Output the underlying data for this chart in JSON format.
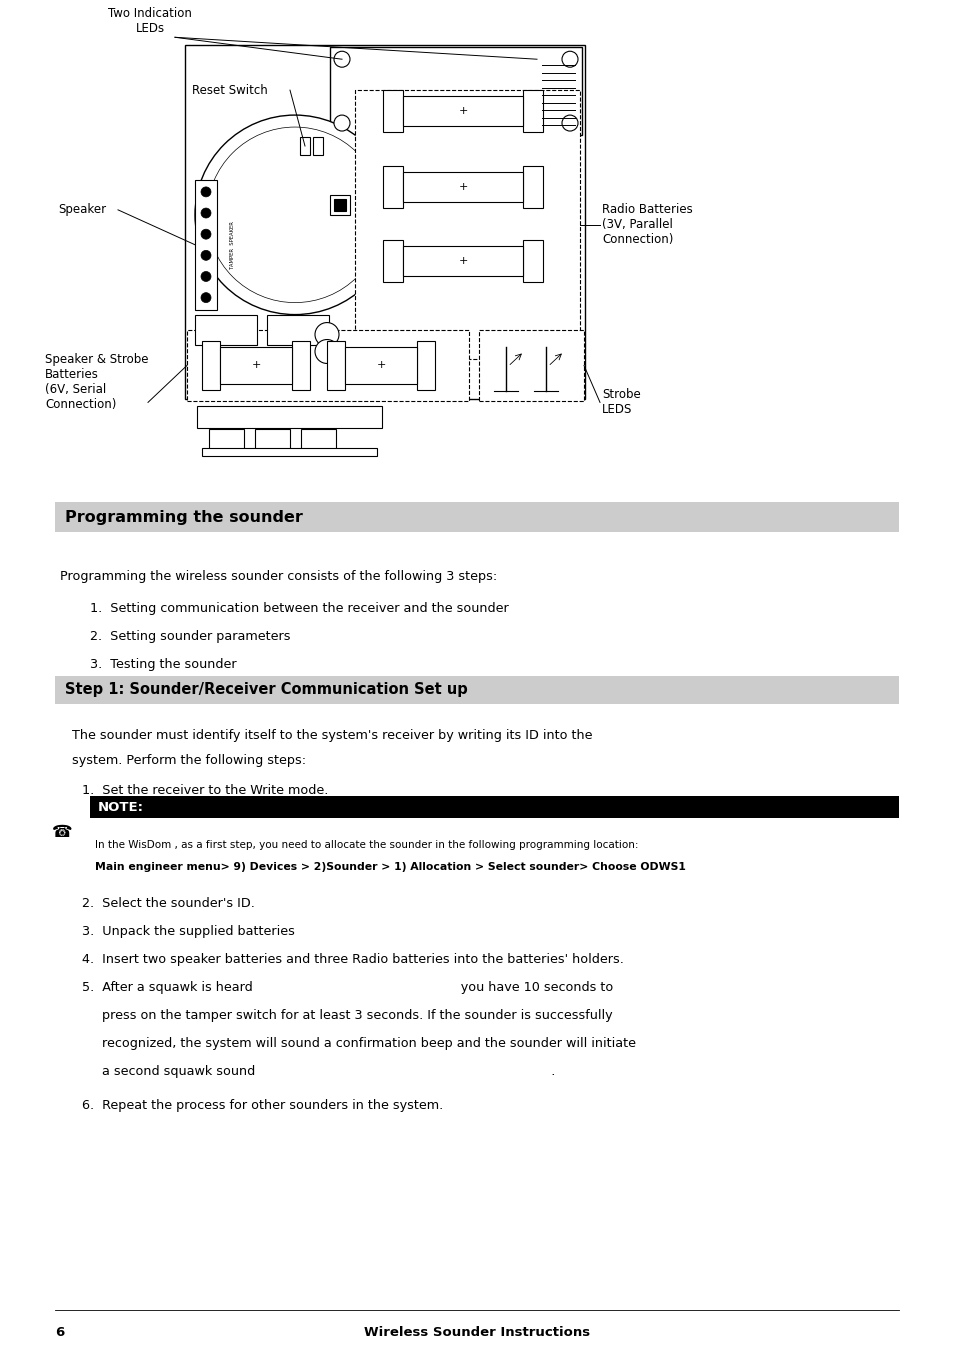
{
  "bg_color": "#ffffff",
  "page_width": 9.54,
  "page_height": 13.52,
  "section_header_bg": "#cccccc",
  "note_header_bg": "#000000",
  "note_header_color": "#ffffff",
  "programming_header": "Programming the sounder",
  "step1_header": "Step 1: Sounder/Receiver Communication Set up",
  "intro_text": "Programming the wireless sounder consists of the following 3 steps:",
  "steps_list": [
    "Setting communication between the receiver and the sounder",
    "Setting sounder parameters",
    "Testing the sounder"
  ],
  "step1_item1": "Set the receiver to the Write mode.",
  "note_label": "NOTE:",
  "note_line1": "In the WisDom , as a first step, you need to allocate the sounder in the following programming location:",
  "note_line2": "Main engineer menu> 9) Devices > 2)Sounder > 1) Allocation > Select sounder> Choose ODWS1",
  "items_2_6": [
    "Select the sounder's ID.",
    "Unpack the supplied batteries",
    "Insert two speaker batteries and three Radio batteries into the batteries' holders.",
    "After a squawk is heard                                                    you have 10 seconds to",
    "press on the tamper switch for at least 3 seconds. If the sounder is successfully",
    "recognized, the system will sound a confirmation beep and the sounder will initiate",
    "a second squawk sound                                                                          .",
    "Repeat the process for other sounders in the system."
  ],
  "labels": {
    "two_indication_leds": "Two Indication\nLEDs",
    "reset_switch": "Reset Switch",
    "speaker": "Speaker",
    "radio_batteries": "Radio Batteries\n(3V, Parallel\nConnection)",
    "speaker_strobe_batteries": "Speaker & Strobe\nBatteries\n(6V, Serial\nConnection)",
    "strobe_leds": "Strobe\nLEDS"
  }
}
